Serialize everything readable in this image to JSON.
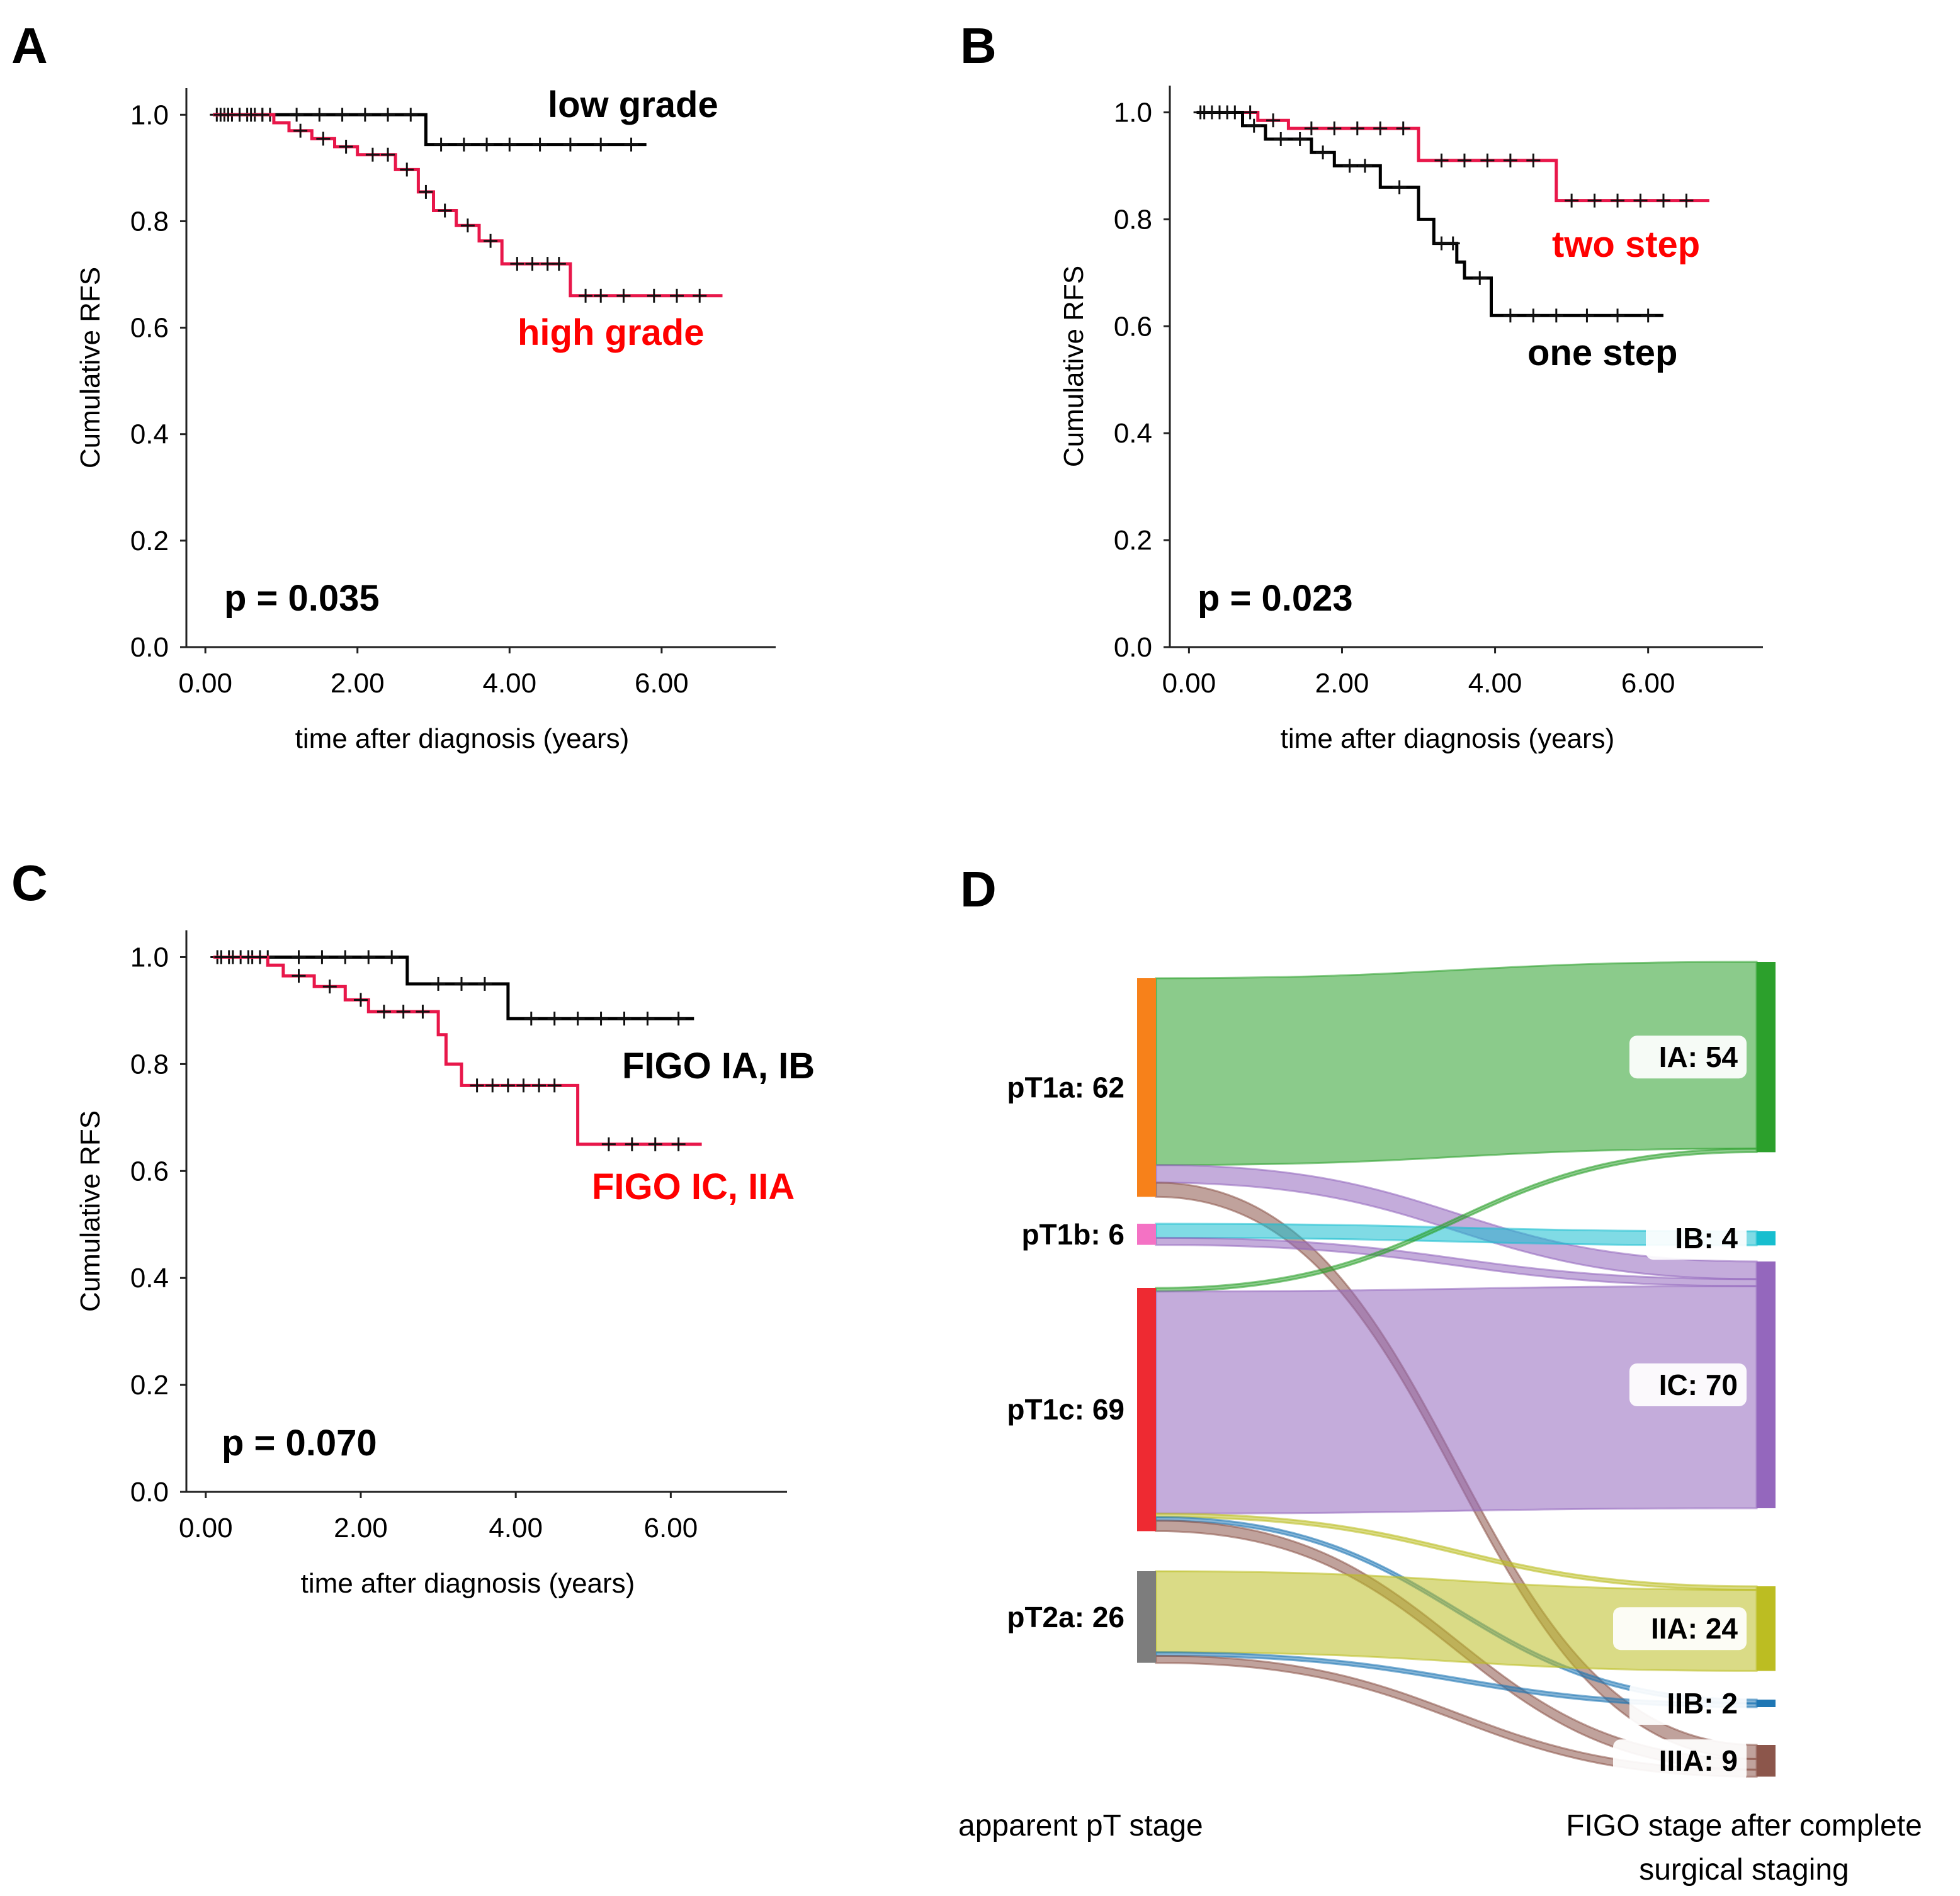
{
  "chart_data": [
    {
      "panel": "A",
      "type": "line",
      "subtype": "kaplan-meier",
      "xlabel": "time after diagnosis (years)",
      "ylabel": "Cumulative RFS",
      "xlim": [
        -0.25,
        7.5
      ],
      "ylim": [
        0,
        1.05
      ],
      "x_ticks": [
        "0.00",
        "2.00",
        "4.00",
        "6.00"
      ],
      "y_ticks": [
        "0.0",
        "0.2",
        "0.4",
        "0.6",
        "0.8",
        "1.0"
      ],
      "p_value": "p = 0.035",
      "series": [
        {
          "name": "low grade",
          "color": "#000000",
          "steps": [
            [
              0.1,
              1.0
            ],
            [
              2.9,
              1.0
            ],
            [
              2.9,
              0.944
            ],
            [
              5.8,
              0.944
            ]
          ],
          "censor_x": [
            0.15,
            0.25,
            0.35,
            0.45,
            0.55,
            0.65,
            0.75,
            0.85,
            1.2,
            1.5,
            1.8,
            2.1,
            2.4,
            2.7,
            3.1,
            3.4,
            3.7,
            4.0,
            4.4,
            4.8,
            5.2,
            5.6
          ],
          "label_color": "#000000"
        },
        {
          "name": "high grade",
          "color": "#e8174a",
          "steps": [
            [
              0.1,
              1.0
            ],
            [
              0.9,
              1.0
            ],
            [
              0.9,
              0.985
            ],
            [
              1.1,
              0.985
            ],
            [
              1.1,
              0.97
            ],
            [
              1.4,
              0.97
            ],
            [
              1.4,
              0.955
            ],
            [
              1.7,
              0.955
            ],
            [
              1.7,
              0.94
            ],
            [
              2.0,
              0.94
            ],
            [
              2.0,
              0.925
            ],
            [
              2.5,
              0.925
            ],
            [
              2.5,
              0.897
            ],
            [
              2.8,
              0.897
            ],
            [
              2.8,
              0.855
            ],
            [
              3.0,
              0.855
            ],
            [
              3.0,
              0.82
            ],
            [
              3.3,
              0.82
            ],
            [
              3.3,
              0.792
            ],
            [
              3.6,
              0.792
            ],
            [
              3.6,
              0.763
            ],
            [
              3.9,
              0.763
            ],
            [
              3.9,
              0.72
            ],
            [
              4.8,
              0.72
            ],
            [
              4.8,
              0.66
            ],
            [
              6.8,
              0.66
            ]
          ],
          "censor_x": [
            0.2,
            0.3,
            0.45,
            0.6,
            0.75,
            1.25,
            1.55,
            1.85,
            2.2,
            2.4,
            2.65,
            2.9,
            3.15,
            3.45,
            3.75,
            4.1,
            4.3,
            4.5,
            4.65,
            5.0,
            5.2,
            5.5,
            5.9,
            6.2,
            6.5
          ],
          "label_color": "#ff0000"
        }
      ]
    },
    {
      "panel": "B",
      "type": "line",
      "subtype": "kaplan-meier",
      "xlabel": "time after diagnosis (years)",
      "ylabel": "Cumulative RFS",
      "xlim": [
        -0.25,
        7.5
      ],
      "ylim": [
        0,
        1.05
      ],
      "x_ticks": [
        "0.00",
        "2.00",
        "4.00",
        "6.00"
      ],
      "y_ticks": [
        "0.0",
        "0.2",
        "0.4",
        "0.6",
        "0.8",
        "1.0"
      ],
      "p_value": "p = 0.023",
      "series": [
        {
          "name": "two step",
          "color": "#e8174a",
          "steps": [
            [
              0.1,
              1.0
            ],
            [
              0.9,
              1.0
            ],
            [
              0.9,
              0.985
            ],
            [
              1.3,
              0.985
            ],
            [
              1.3,
              0.97
            ],
            [
              3.0,
              0.97
            ],
            [
              3.0,
              0.91
            ],
            [
              4.8,
              0.91
            ],
            [
              4.8,
              0.835
            ],
            [
              6.8,
              0.835
            ]
          ],
          "censor_x": [
            0.2,
            0.4,
            0.6,
            0.8,
            1.1,
            1.6,
            1.9,
            2.2,
            2.5,
            2.8,
            3.3,
            3.6,
            3.9,
            4.2,
            4.5,
            5.0,
            5.3,
            5.6,
            5.9,
            6.2,
            6.5
          ],
          "label_color": "#ff0000"
        },
        {
          "name": "one step",
          "color": "#000000",
          "steps": [
            [
              0.1,
              1.0
            ],
            [
              0.7,
              1.0
            ],
            [
              0.7,
              0.975
            ],
            [
              1.0,
              0.975
            ],
            [
              1.0,
              0.95
            ],
            [
              1.6,
              0.95
            ],
            [
              1.6,
              0.925
            ],
            [
              1.9,
              0.925
            ],
            [
              1.9,
              0.9
            ],
            [
              2.5,
              0.9
            ],
            [
              2.5,
              0.86
            ],
            [
              3.0,
              0.86
            ],
            [
              3.0,
              0.8
            ],
            [
              3.2,
              0.8
            ],
            [
              3.2,
              0.755
            ],
            [
              3.5,
              0.755
            ],
            [
              3.5,
              0.72
            ],
            [
              3.6,
              0.72
            ],
            [
              3.6,
              0.69
            ],
            [
              3.95,
              0.69
            ],
            [
              3.95,
              0.62
            ],
            [
              6.2,
              0.62
            ]
          ],
          "censor_x": [
            0.15,
            0.3,
            0.5,
            0.85,
            1.2,
            1.45,
            1.75,
            2.1,
            2.3,
            2.75,
            3.3,
            3.45,
            3.8,
            4.2,
            4.5,
            4.8,
            5.2,
            5.6,
            6.0
          ],
          "label_color": "#000000"
        }
      ]
    },
    {
      "panel": "C",
      "type": "line",
      "subtype": "kaplan-meier",
      "xlabel": "time after diagnosis (years)",
      "ylabel": "Cumulative RFS",
      "xlim": [
        -0.25,
        7.5
      ],
      "ylim": [
        0,
        1.05
      ],
      "x_ticks": [
        "0.00",
        "2.00",
        "4.00",
        "6.00"
      ],
      "y_ticks": [
        "0.0",
        "0.2",
        "0.4",
        "0.6",
        "0.8",
        "1.0"
      ],
      "p_value": "p = 0.070",
      "series": [
        {
          "name": "FIGO IA, IB",
          "color": "#000000",
          "steps": [
            [
              0.1,
              1.0
            ],
            [
              2.6,
              1.0
            ],
            [
              2.6,
              0.95
            ],
            [
              3.9,
              0.95
            ],
            [
              3.9,
              0.885
            ],
            [
              6.3,
              0.885
            ]
          ],
          "censor_x": [
            0.15,
            0.3,
            0.45,
            0.6,
            0.8,
            1.2,
            1.5,
            1.8,
            2.1,
            2.4,
            3.0,
            3.3,
            3.6,
            4.2,
            4.5,
            4.8,
            5.1,
            5.4,
            5.7,
            6.1
          ],
          "label_color": "#000000"
        },
        {
          "name": "FIGO IC, IIA",
          "color": "#e8174a",
          "steps": [
            [
              0.1,
              1.0
            ],
            [
              0.8,
              1.0
            ],
            [
              0.8,
              0.985
            ],
            [
              1.0,
              0.985
            ],
            [
              1.0,
              0.965
            ],
            [
              1.4,
              0.965
            ],
            [
              1.4,
              0.945
            ],
            [
              1.8,
              0.945
            ],
            [
              1.8,
              0.92
            ],
            [
              2.1,
              0.92
            ],
            [
              2.1,
              0.898
            ],
            [
              3.0,
              0.898
            ],
            [
              3.0,
              0.855
            ],
            [
              3.1,
              0.855
            ],
            [
              3.1,
              0.8
            ],
            [
              3.3,
              0.8
            ],
            [
              3.3,
              0.76
            ],
            [
              4.8,
              0.76
            ],
            [
              4.8,
              0.65
            ],
            [
              6.4,
              0.65
            ]
          ],
          "censor_x": [
            0.2,
            0.35,
            0.55,
            0.7,
            1.2,
            1.6,
            2.0,
            2.3,
            2.55,
            2.8,
            3.5,
            3.7,
            3.9,
            4.1,
            4.3,
            4.5,
            5.2,
            5.5,
            5.8,
            6.1
          ],
          "label_color": "#ff0000"
        }
      ]
    },
    {
      "panel": "D",
      "type": "sankey",
      "left_caption": "apparent pT stage",
      "right_caption_lines": [
        "FIGO stage after complete",
        "surgical staging"
      ],
      "sources": [
        {
          "id": "pT1a",
          "label": "pT1a: 62",
          "value": 62,
          "color": "#f7811a"
        },
        {
          "id": "pT1b",
          "label": "pT1b: 6",
          "value": 6,
          "color": "#f472c4"
        },
        {
          "id": "pT1c",
          "label": "pT1c: 69",
          "value": 69,
          "color": "#ee2a32"
        },
        {
          "id": "pT2a",
          "label": "pT2a: 26",
          "value": 26,
          "color": "#7d7d7d"
        }
      ],
      "targets": [
        {
          "id": "IA",
          "label": "IA: 54",
          "value": 54,
          "color": "#2ca02c"
        },
        {
          "id": "IB",
          "label": "IB: 4",
          "value": 4,
          "color": "#17becf"
        },
        {
          "id": "IC",
          "label": "IC: 70",
          "value": 70,
          "color": "#9467bd"
        },
        {
          "id": "IIA",
          "label": "IIA: 24",
          "value": 24,
          "color": "#bcbd22"
        },
        {
          "id": "IIB",
          "label": "IIB: 2",
          "value": 2,
          "color": "#1f77b4"
        },
        {
          "id": "IIIA",
          "label": "IIIA: 9",
          "value": 9,
          "color": "#8c564b"
        }
      ],
      "links": [
        {
          "source": "pT1a",
          "target": "IA",
          "value": 53,
          "color": "#2ca02c"
        },
        {
          "source": "pT1a",
          "target": "IC",
          "value": 5,
          "color": "#9467bd"
        },
        {
          "source": "pT1a",
          "target": "IIIA",
          "value": 4,
          "color": "#8c564b"
        },
        {
          "source": "pT1b",
          "target": "IB",
          "value": 4,
          "color": "#17becf"
        },
        {
          "source": "pT1b",
          "target": "IC",
          "value": 2,
          "color": "#9467bd"
        },
        {
          "source": "pT1c",
          "target": "IA",
          "value": 1,
          "color": "#2ca02c"
        },
        {
          "source": "pT1c",
          "target": "IC",
          "value": 63,
          "color": "#9467bd"
        },
        {
          "source": "pT1c",
          "target": "IIA",
          "value": 1,
          "color": "#bcbd22"
        },
        {
          "source": "pT1c",
          "target": "IIB",
          "value": 1,
          "color": "#1f77b4"
        },
        {
          "source": "pT1c",
          "target": "IIIA",
          "value": 3,
          "color": "#8c564b"
        },
        {
          "source": "pT2a",
          "target": "IIA",
          "value": 23,
          "color": "#bcbd22"
        },
        {
          "source": "pT2a",
          "target": "IIB",
          "value": 1,
          "color": "#1f77b4"
        },
        {
          "source": "pT2a",
          "target": "IIIA",
          "value": 2,
          "color": "#8c564b"
        }
      ]
    }
  ]
}
